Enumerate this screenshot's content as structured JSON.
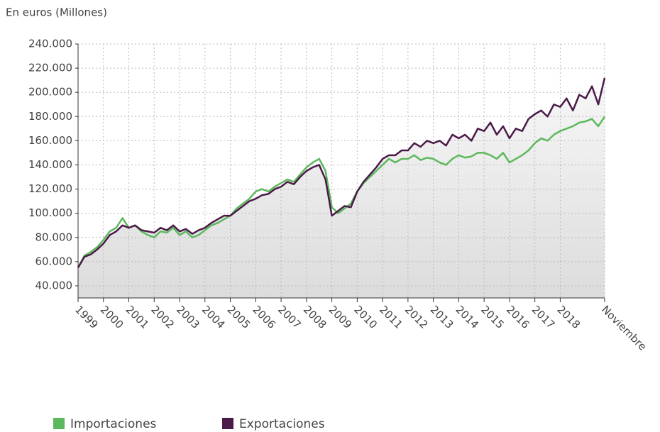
{
  "chart_data": {
    "type": "line",
    "title": "En euros (Millones)",
    "categories": [
      "1999",
      null,
      null,
      null,
      "2000",
      null,
      null,
      null,
      "2001",
      null,
      null,
      null,
      "2002",
      null,
      null,
      null,
      "2003",
      null,
      null,
      null,
      "2004",
      null,
      null,
      null,
      "2005",
      null,
      null,
      null,
      "2006",
      null,
      null,
      null,
      "2007",
      null,
      null,
      null,
      "2008",
      null,
      null,
      null,
      "2009",
      null,
      null,
      null,
      "2010",
      null,
      null,
      null,
      "2011",
      null,
      null,
      null,
      "2012",
      null,
      null,
      null,
      "2013",
      null,
      null,
      null,
      "2014",
      null,
      null,
      null,
      "2015",
      null,
      null,
      null,
      "2016",
      null,
      null,
      null,
      "2017",
      null,
      null,
      null,
      "2018",
      null,
      null,
      null,
      null,
      null,
      null,
      "Noviembre"
    ],
    "series": [
      {
        "name": "Importaciones",
        "color": "#5cb85c",
        "values": [
          55000,
          65000,
          68000,
          72000,
          78000,
          85000,
          88000,
          96000,
          88000,
          90000,
          85000,
          82000,
          80000,
          85000,
          84000,
          88000,
          82000,
          85000,
          80000,
          82000,
          86000,
          90000,
          92000,
          95000,
          98000,
          104000,
          108000,
          112000,
          118000,
          120000,
          118000,
          122000,
          125000,
          128000,
          126000,
          132000,
          138000,
          142000,
          145000,
          135000,
          105000,
          100000,
          104000,
          108000,
          118000,
          125000,
          130000,
          135000,
          140000,
          145000,
          142000,
          145000,
          145000,
          148000,
          144000,
          146000,
          145000,
          142000,
          140000,
          145000,
          148000,
          146000,
          147000,
          150000,
          150000,
          148000,
          145000,
          150000,
          142000,
          145000,
          148000,
          152000,
          158000,
          162000,
          160000,
          165000,
          168000,
          170000,
          172000,
          175000,
          176000,
          178000,
          172000,
          180000
        ]
      },
      {
        "name": "Exportaciones",
        "color": "#4a1a48",
        "values": [
          55000,
          64000,
          66000,
          70000,
          75000,
          82000,
          85000,
          90000,
          88000,
          90000,
          86000,
          85000,
          84000,
          88000,
          86000,
          90000,
          85000,
          87000,
          83000,
          86000,
          88000,
          92000,
          95000,
          98000,
          98000,
          102000,
          106000,
          110000,
          112000,
          115000,
          116000,
          120000,
          122000,
          126000,
          124000,
          130000,
          135000,
          138000,
          140000,
          128000,
          98000,
          102000,
          106000,
          105000,
          118000,
          126000,
          132000,
          138000,
          145000,
          148000,
          148000,
          152000,
          152000,
          158000,
          155000,
          160000,
          158000,
          160000,
          156000,
          165000,
          162000,
          165000,
          160000,
          170000,
          168000,
          175000,
          165000,
          172000,
          162000,
          170000,
          168000,
          178000,
          182000,
          185000,
          180000,
          190000,
          188000,
          195000,
          185000,
          198000,
          195000,
          205000,
          190000,
          212000
        ]
      }
    ],
    "ylim": [
      30000,
      240000
    ],
    "yticks": [
      {
        "value": 40000,
        "label": "40.000"
      },
      {
        "value": 60000,
        "label": "60.000"
      },
      {
        "value": 80000,
        "label": "80.000"
      },
      {
        "value": 100000,
        "label": "100.000"
      },
      {
        "value": 120000,
        "label": "120.000"
      },
      {
        "value": 140000,
        "label": "140.000"
      },
      {
        "value": 160000,
        "label": "160.000"
      },
      {
        "value": 180000,
        "label": "180.000"
      },
      {
        "value": 200000,
        "label": "200.000"
      },
      {
        "value": 220000,
        "label": "220.000"
      },
      {
        "value": 240000,
        "label": "240.000"
      }
    ],
    "grid": true
  }
}
